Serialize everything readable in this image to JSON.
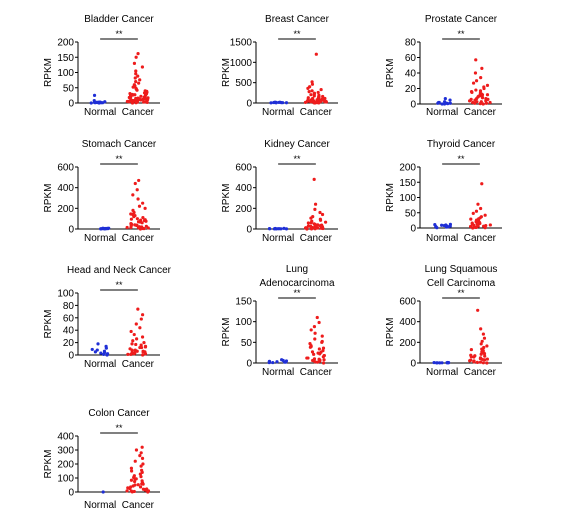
{
  "colors": {
    "normal": "#1f2fd6",
    "cancer": "#ee1c1c",
    "axis": "#000000"
  },
  "chart_data": [
    {
      "type": "scatter",
      "title": [
        "Bladder  Cancer"
      ],
      "ylabel": "RPKM",
      "categories": [
        "Normal",
        "Cancer"
      ],
      "ylim": [
        0,
        200
      ],
      "yticks": [
        "0",
        "50",
        "100",
        "150",
        "200"
      ],
      "significance": "**",
      "series": [
        {
          "category": "Normal",
          "values": [
            2,
            1,
            3,
            0,
            4,
            1,
            2,
            25,
            8,
            1,
            0,
            3,
            2,
            1
          ]
        },
        {
          "category": "Cancer",
          "values": [
            162,
            150,
            130,
            118,
            105,
            96,
            88,
            82,
            76,
            70,
            65,
            60,
            56,
            52,
            48,
            45,
            42,
            40,
            38,
            35,
            33,
            31,
            30,
            28,
            27,
            25,
            24,
            22,
            21,
            20,
            19,
            18,
            17,
            16,
            15,
            14,
            13,
            12,
            11,
            10,
            9,
            8,
            7,
            6,
            5,
            4,
            3,
            2,
            1,
            0,
            36,
            29,
            23,
            18,
            14,
            11,
            8,
            5,
            3,
            1,
            26,
            19,
            13,
            9,
            6,
            4,
            2
          ]
        }
      ]
    },
    {
      "type": "scatter",
      "title": [
        "Breast  Cancer"
      ],
      "ylabel": "RPKM",
      "categories": [
        "Normal",
        "Cancer"
      ],
      "ylim": [
        0,
        1500
      ],
      "yticks": [
        "0",
        "500",
        "1000",
        "1500"
      ],
      "significance": "**",
      "series": [
        {
          "category": "Normal",
          "values": [
            5,
            10,
            15,
            8,
            20,
            12,
            6,
            18,
            9,
            14,
            4,
            11
          ]
        },
        {
          "category": "Cancer",
          "values": [
            1200,
            520,
            460,
            400,
            360,
            330,
            300,
            280,
            260,
            240,
            220,
            205,
            190,
            175,
            160,
            150,
            140,
            130,
            120,
            110,
            100,
            92,
            85,
            78,
            70,
            64,
            58,
            52,
            46,
            40,
            35,
            30,
            25,
            20,
            15,
            10,
            5,
            0,
            80,
            60,
            45,
            30,
            18,
            9,
            3,
            110,
            70,
            38,
            12
          ]
        }
      ]
    },
    {
      "type": "scatter",
      "title": [
        "Prostate Cancer"
      ],
      "ylabel": "RPKM",
      "categories": [
        "Normal",
        "Cancer"
      ],
      "ylim": [
        0,
        80
      ],
      "yticks": [
        "0",
        "20",
        "40",
        "60",
        "80"
      ],
      "significance": "**",
      "series": [
        {
          "category": "Normal",
          "values": [
            7,
            1,
            2,
            0,
            3,
            1,
            5,
            0.5,
            2,
            1,
            0
          ]
        },
        {
          "category": "Cancer",
          "values": [
            57,
            46,
            40,
            34,
            30,
            27,
            24,
            22,
            20,
            18,
            16,
            15,
            14,
            13,
            12,
            11,
            10,
            9,
            8,
            7,
            6,
            5,
            4,
            3,
            2,
            1,
            0.5,
            0,
            17,
            12,
            9,
            6,
            4,
            2,
            1,
            11,
            7,
            3
          ]
        }
      ]
    },
    {
      "type": "scatter",
      "title": [
        "Stomach  Cancer"
      ],
      "ylabel": "RPKM",
      "categories": [
        "Normal",
        "Cancer"
      ],
      "ylim": [
        0,
        600
      ],
      "yticks": [
        "0",
        "200",
        "400",
        "600"
      ],
      "significance": "**",
      "series": [
        {
          "category": "Normal",
          "values": [
            2,
            5,
            3,
            8,
            1,
            4,
            6,
            2,
            3,
            7,
            1
          ]
        },
        {
          "category": "Cancer",
          "values": [
            470,
            440,
            380,
            330,
            290,
            250,
            220,
            200,
            180,
            160,
            145,
            130,
            120,
            110,
            100,
            90,
            82,
            75,
            68,
            60,
            52,
            45,
            38,
            32,
            26,
            20,
            15,
            10,
            5,
            0,
            95,
            70,
            50,
            34,
            22,
            12,
            4,
            140,
            85,
            40,
            14
          ]
        }
      ]
    },
    {
      "type": "scatter",
      "title": [
        "Kidney  Cancer"
      ],
      "ylabel": "RPKM",
      "categories": [
        "Normal",
        "Cancer"
      ],
      "ylim": [
        0,
        600
      ],
      "yticks": [
        "0",
        "200",
        "400",
        "600"
      ],
      "significance": "**",
      "series": [
        {
          "category": "Normal",
          "values": [
            1,
            3,
            2,
            5,
            1,
            4,
            2,
            6,
            1,
            3
          ]
        },
        {
          "category": "Cancer",
          "values": [
            480,
            240,
            190,
            160,
            140,
            120,
            105,
            95,
            85,
            75,
            66,
            58,
            50,
            44,
            38,
            32,
            27,
            22,
            18,
            14,
            10,
            7,
            4,
            2,
            0,
            40,
            28,
            18,
            10,
            5,
            1,
            60,
            30,
            12
          ]
        }
      ]
    },
    {
      "type": "scatter",
      "title": [
        "Thyroid   Cancer"
      ],
      "ylabel": "RPKM",
      "categories": [
        "Normal",
        "Cancer"
      ],
      "ylim": [
        0,
        200
      ],
      "yticks": [
        "0",
        "50",
        "100",
        "150",
        "200"
      ],
      "significance": "**",
      "series": [
        {
          "category": "Normal",
          "values": [
            10,
            6,
            8,
            3,
            12,
            5,
            9,
            2,
            7,
            4,
            11,
            1
          ]
        },
        {
          "category": "Cancer",
          "values": [
            145,
            78,
            64,
            55,
            48,
            42,
            37,
            33,
            29,
            26,
            23,
            20,
            18,
            16,
            14,
            12,
            10,
            8,
            6,
            4,
            2,
            1,
            0,
            30,
            22,
            15,
            9,
            5,
            2,
            25,
            13,
            6
          ]
        }
      ]
    },
    {
      "type": "scatter",
      "title": [
        "Head and Neck Cancer"
      ],
      "ylabel": "RPKM",
      "categories": [
        "Normal",
        "Cancer"
      ],
      "ylim": [
        0,
        100
      ],
      "yticks": [
        "0",
        "20",
        "40",
        "60",
        "80",
        "100"
      ],
      "significance": "**",
      "series": [
        {
          "category": "Normal",
          "values": [
            18,
            14,
            11,
            8,
            6,
            4,
            2,
            1,
            0,
            9,
            5,
            3
          ]
        },
        {
          "category": "Cancer",
          "values": [
            74,
            65,
            58,
            50,
            44,
            38,
            33,
            29,
            26,
            23,
            20,
            18,
            16,
            14,
            12,
            10,
            8,
            7,
            6,
            5,
            4,
            3,
            2,
            1,
            0,
            17,
            12,
            8,
            5,
            3,
            1,
            13,
            6,
            2
          ]
        }
      ]
    },
    {
      "type": "scatter",
      "title": [
        "Lung",
        "Adenocarcinoma"
      ],
      "ylabel": "RPKM",
      "categories": [
        "Normal",
        "Cancer"
      ],
      "ylim": [
        0,
        150
      ],
      "yticks": [
        "0",
        "50",
        "100",
        "150"
      ],
      "significance": "**",
      "series": [
        {
          "category": "Normal",
          "values": [
            2,
            4,
            1,
            6,
            3,
            8,
            2,
            5,
            1,
            3
          ]
        },
        {
          "category": "Cancer",
          "values": [
            110,
            98,
            88,
            80,
            72,
            65,
            58,
            52,
            47,
            42,
            38,
            34,
            30,
            27,
            24,
            21,
            18,
            15,
            12,
            10,
            8,
            6,
            4,
            2,
            0,
            50,
            36,
            26,
            18,
            12,
            7,
            3,
            40,
            22,
            9
          ]
        }
      ]
    },
    {
      "type": "scatter",
      "title": [
        "Lung Squamous",
        "Cell Carcinoma"
      ],
      "ylabel": "RPKM",
      "categories": [
        "Normal",
        "Cancer"
      ],
      "ylim": [
        0,
        600
      ],
      "yticks": [
        "0",
        "200",
        "400",
        "600"
      ],
      "significance": "**",
      "series": [
        {
          "category": "Normal",
          "values": [
            2,
            4,
            1,
            3,
            5,
            2,
            1,
            3,
            4,
            2
          ]
        },
        {
          "category": "Cancer",
          "values": [
            510,
            330,
            280,
            240,
            210,
            185,
            165,
            150,
            135,
            120,
            108,
            96,
            85,
            75,
            66,
            58,
            50,
            42,
            35,
            28,
            22,
            16,
            11,
            6,
            2,
            0,
            90,
            60,
            38,
            20,
            8,
            130,
            70,
            30
          ]
        }
      ]
    },
    {
      "type": "scatter",
      "title": [
        "Colon Cancer"
      ],
      "ylabel": "RPKM",
      "categories": [
        "Normal",
        "Cancer"
      ],
      "ylim": [
        0,
        400
      ],
      "yticks": [
        "0",
        "100",
        "200",
        "300",
        "400"
      ],
      "significance": "**",
      "series": [
        {
          "category": "Normal",
          "values": [
            0
          ]
        },
        {
          "category": "Cancer",
          "values": [
            320,
            300,
            280,
            260,
            240,
            220,
            200,
            185,
            170,
            155,
            140,
            128,
            116,
            104,
            94,
            84,
            75,
            66,
            58,
            50,
            43,
            36,
            30,
            24,
            18,
            13,
            8,
            4,
            1,
            0,
            110,
            80,
            56,
            36,
            20,
            8,
            150,
            96,
            52,
            22,
            6
          ]
        }
      ]
    }
  ]
}
